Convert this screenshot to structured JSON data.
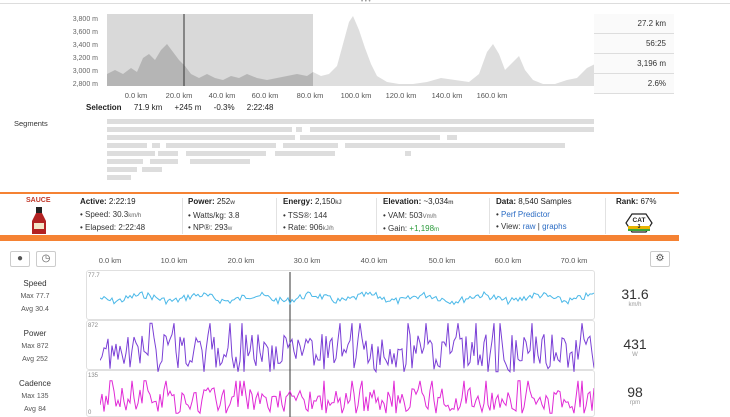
{
  "overview": {
    "y_ticks": [
      "3,800 m",
      "3,600 m",
      "3,400 m",
      "3,200 m",
      "3,000 m",
      "2,800 m"
    ],
    "x_ticks": [
      "0.0 km",
      "20.0 km",
      "40.0 km",
      "60.0 km",
      "80.0 km",
      "100.0 km",
      "120.0 km",
      "140.0 km",
      "160.0 km"
    ],
    "stats": [
      "27.2 km",
      "56:25",
      "3,196 m",
      "2.6%"
    ]
  },
  "selection": {
    "label": "Selection",
    "distance": "71.9 km",
    "elev": "+245 m",
    "grade": "-0.3%",
    "time": "2:22:48"
  },
  "segments_label": "Segments",
  "stats": {
    "sauce": "SAUCE",
    "active": {
      "label": "Active:",
      "value": "2:22:19"
    },
    "speed": {
      "label": "• Speed:",
      "value": "30.3",
      "unit": "km/h"
    },
    "elapsed": {
      "label": "• Elapsed:",
      "value": "2:22:48"
    },
    "power": {
      "label": "Power:",
      "value": "252",
      "unit": "w"
    },
    "wkg": {
      "label": "• Watts/kg:",
      "value": "3.8"
    },
    "np": {
      "label": "• NP®:",
      "value": "293",
      "unit": "w"
    },
    "energy": {
      "label": "Energy:",
      "value": "2,150",
      "unit": "kJ"
    },
    "tss": {
      "label": "• TSS®:",
      "value": "144"
    },
    "rate": {
      "label": "• Rate:",
      "value": "906",
      "unit": "kJ/h"
    },
    "elevation": {
      "label": "Elevation:",
      "value": "~3,034",
      "unit": "m"
    },
    "vam": {
      "label": "• VAM:",
      "value": "503",
      "unit": "Vm/h"
    },
    "gain": {
      "label": "• Gain:",
      "value": "+1,198",
      "unit": "m"
    },
    "data": {
      "label": "Data:",
      "value": "8,540 Samples"
    },
    "perf": {
      "label": "• ",
      "link": "Perf Predictor"
    },
    "view": {
      "label": "• View:",
      "raw": "raw",
      "sep": " | ",
      "graphs": "graphs"
    },
    "rank": {
      "label": "Rank:",
      "value": "67%"
    },
    "cat_badge": "CAT",
    "cat_num": "3"
  },
  "toggle_icon": "chevron-down-icon",
  "axis_km": [
    "0.0 km",
    "10.0 km",
    "20.0 km",
    "30.0 km",
    "40.0 km",
    "50.0 km",
    "60.0 km",
    "70.0 km"
  ],
  "rows": [
    {
      "name": "Speed",
      "max_label": "Max",
      "max": "77.7",
      "avg_label": "Avg",
      "avg": "30.4",
      "value": "31.6",
      "unit": "km/h",
      "color": "#4ab8e8",
      "tick_top": "77.7",
      "tick_bot": "0"
    },
    {
      "name": "Power",
      "max_label": "Max",
      "max": "872",
      "avg_label": "Avg",
      "avg": "252",
      "value": "431",
      "unit": "W",
      "color": "#7a3fd6",
      "tick_top": "872",
      "tick_bot": "0"
    },
    {
      "name": "Cadence",
      "max_label": "Max",
      "max": "135",
      "avg_label": "Avg",
      "avg": "84",
      "value": "98",
      "unit": "rpm",
      "color": "#e02ad6",
      "tick_top": "135",
      "tick_bot": "0"
    }
  ]
}
